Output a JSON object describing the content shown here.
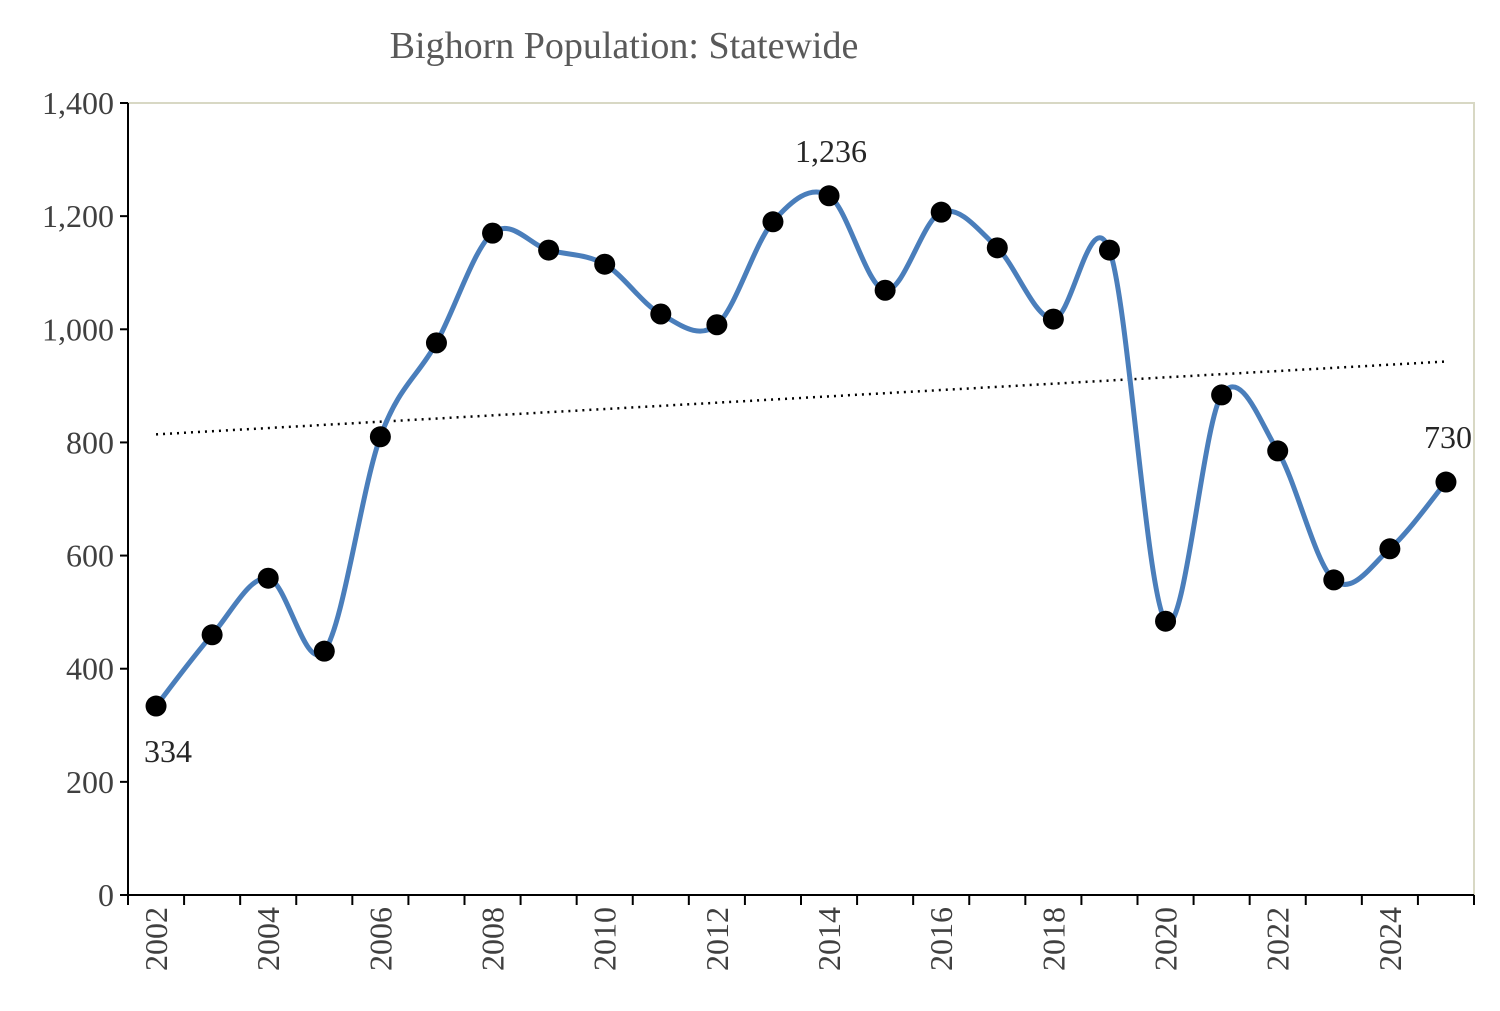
{
  "chart_data": {
    "type": "line",
    "title": "Bighorn Population: Statewide",
    "xlabel": "",
    "ylabel": "",
    "x": [
      2002,
      2003,
      2004,
      2005,
      2006,
      2007,
      2008,
      2009,
      2010,
      2011,
      2012,
      2013,
      2014,
      2015,
      2016,
      2017,
      2018,
      2019,
      2020,
      2021,
      2022,
      2023,
      2024,
      2025
    ],
    "x_tick_labels": [
      "2002",
      "2004",
      "2006",
      "2008",
      "2010",
      "2012",
      "2014",
      "2016",
      "2018",
      "2020",
      "2022",
      "2024"
    ],
    "series": [
      {
        "values": [
          334,
          460,
          560,
          431,
          810,
          976,
          1170,
          1140,
          1115,
          1027,
          1008,
          1190,
          1236,
          1069,
          1207,
          1144,
          1018,
          1140,
          484,
          884,
          785,
          557,
          612,
          730
        ],
        "color": "#4a7ebb",
        "smoothed": true,
        "marker": "circle",
        "marker_color": "#000000"
      }
    ],
    "trendline": {
      "type": "linear",
      "style": "dotted",
      "color": "#000000"
    },
    "data_labels": [
      {
        "x": 2002,
        "text": "334",
        "position": "below"
      },
      {
        "x": 2014,
        "text": "1,236",
        "position": "above"
      },
      {
        "x": 2025,
        "text": "730",
        "position": "above"
      }
    ],
    "ylim": [
      0,
      1400
    ],
    "y_ticks": [
      0,
      200,
      400,
      600,
      800,
      1000,
      1200,
      1400
    ],
    "y_tick_labels": [
      "0",
      "200",
      "400",
      "600",
      "800",
      "1,000",
      "1,200",
      "1,400"
    ],
    "grid": false,
    "legend": "none"
  }
}
